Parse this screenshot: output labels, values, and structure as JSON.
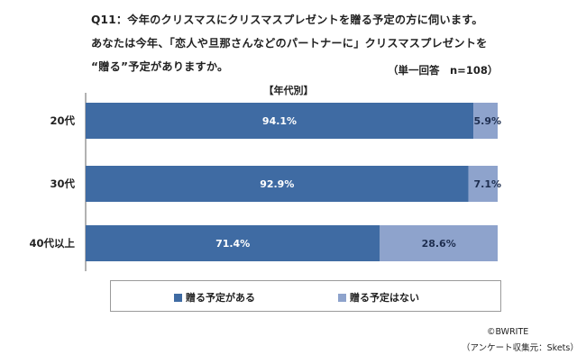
{
  "question": {
    "line1": "Q11：今年のクリスマスにクリスマスプレゼントを贈る予定の方に伺います。",
    "line2": "あなたは今年、「恋人や旦那さんなどのパートナーに」クリスマスプレゼントを",
    "line3": "“贈る”予定がありますか。"
  },
  "meta": "（単一回答　n=108）",
  "subtitle": "【年代別】",
  "colors": {
    "yes": "#3f6ba3",
    "no": "#8ea3cc",
    "axis": "#666666"
  },
  "chart_data": {
    "type": "bar",
    "orientation": "horizontal",
    "stacked": true,
    "categories": [
      "20代",
      "30代",
      "40代以上"
    ],
    "series": [
      {
        "name": "贈る予定がある",
        "values": [
          94.1,
          92.9,
          71.4
        ],
        "labels": [
          "94.1%",
          "92.9%",
          "71.4%"
        ]
      },
      {
        "name": "贈る予定はない",
        "values": [
          5.9,
          7.1,
          28.6
        ],
        "labels": [
          "5.9%",
          "7.1%",
          "28.6%"
        ]
      }
    ],
    "xlim": [
      0,
      100
    ],
    "title": "【年代別】",
    "legend": "bottom"
  },
  "footer": {
    "copyright": "©BWRITE",
    "source": "（アンケート収集元：Skets）"
  }
}
